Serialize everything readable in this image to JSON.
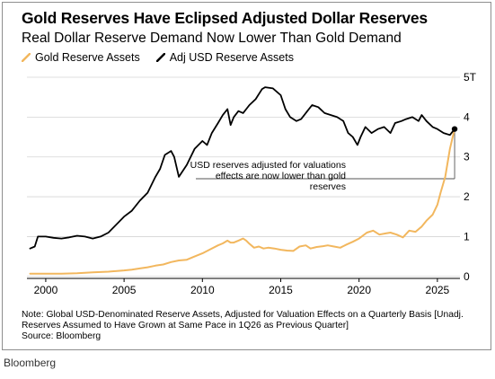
{
  "chart_data": {
    "type": "line",
    "title": "Gold Reserves Have Eclipsed Adjusted Dollar Reserves",
    "subtitle": "Real Dollar Reserve Demand Now Lower Than Gold Demand",
    "y_unit_suffix": "T",
    "xlim": [
      1998.8,
      2026.9
    ],
    "ylim": [
      -0.05,
      5.0
    ],
    "x_ticks": [
      2000,
      2005,
      2010,
      2015,
      2020,
      2025
    ],
    "y_ticks": [
      0,
      1,
      2,
      3,
      4,
      5
    ],
    "grid": true,
    "legend_position": "top-left",
    "series": [
      {
        "name": "Gold Reserve Assets",
        "color": "#f2b75e",
        "points": [
          [
            1999.0,
            0.07
          ],
          [
            2000.0,
            0.07
          ],
          [
            2001.0,
            0.07
          ],
          [
            2002.0,
            0.08
          ],
          [
            2003.0,
            0.1
          ],
          [
            2004.0,
            0.12
          ],
          [
            2005.0,
            0.15
          ],
          [
            2005.5,
            0.17
          ],
          [
            2006.0,
            0.2
          ],
          [
            2006.5,
            0.23
          ],
          [
            2007.0,
            0.27
          ],
          [
            2007.5,
            0.3
          ],
          [
            2008.0,
            0.36
          ],
          [
            2008.5,
            0.4
          ],
          [
            2009.0,
            0.42
          ],
          [
            2009.5,
            0.5
          ],
          [
            2010.0,
            0.58
          ],
          [
            2010.5,
            0.68
          ],
          [
            2011.0,
            0.78
          ],
          [
            2011.3,
            0.83
          ],
          [
            2011.6,
            0.9
          ],
          [
            2011.8,
            0.85
          ],
          [
            2012.0,
            0.85
          ],
          [
            2012.3,
            0.9
          ],
          [
            2012.6,
            0.95
          ],
          [
            2012.8,
            0.9
          ],
          [
            2013.0,
            0.82
          ],
          [
            2013.3,
            0.72
          ],
          [
            2013.6,
            0.75
          ],
          [
            2013.9,
            0.7
          ],
          [
            2014.2,
            0.72
          ],
          [
            2014.6,
            0.7
          ],
          [
            2015.0,
            0.67
          ],
          [
            2015.4,
            0.65
          ],
          [
            2015.8,
            0.64
          ],
          [
            2016.2,
            0.75
          ],
          [
            2016.6,
            0.78
          ],
          [
            2016.9,
            0.7
          ],
          [
            2017.3,
            0.74
          ],
          [
            2017.7,
            0.76
          ],
          [
            2018.0,
            0.78
          ],
          [
            2018.4,
            0.75
          ],
          [
            2018.8,
            0.72
          ],
          [
            2019.2,
            0.8
          ],
          [
            2019.6,
            0.87
          ],
          [
            2020.0,
            0.95
          ],
          [
            2020.5,
            1.1
          ],
          [
            2020.9,
            1.15
          ],
          [
            2021.3,
            1.05
          ],
          [
            2021.7,
            1.08
          ],
          [
            2022.0,
            1.1
          ],
          [
            2022.4,
            1.05
          ],
          [
            2022.8,
            0.98
          ],
          [
            2023.2,
            1.15
          ],
          [
            2023.6,
            1.12
          ],
          [
            2024.0,
            1.25
          ],
          [
            2024.3,
            1.4
          ],
          [
            2024.7,
            1.55
          ],
          [
            2025.0,
            1.8
          ],
          [
            2025.2,
            2.1
          ],
          [
            2025.5,
            2.5
          ],
          [
            2025.8,
            3.2
          ],
          [
            2026.1,
            3.7
          ]
        ]
      },
      {
        "name": "Adj USD Reserve Assets",
        "color": "#000000",
        "points": [
          [
            1999.0,
            0.7
          ],
          [
            1999.3,
            0.75
          ],
          [
            1999.5,
            1.0
          ],
          [
            2000.0,
            1.0
          ],
          [
            2000.5,
            0.97
          ],
          [
            2001.0,
            0.95
          ],
          [
            2001.5,
            0.98
          ],
          [
            2002.0,
            1.02
          ],
          [
            2002.5,
            1.0
          ],
          [
            2003.0,
            0.95
          ],
          [
            2003.5,
            1.0
          ],
          [
            2004.0,
            1.1
          ],
          [
            2004.5,
            1.3
          ],
          [
            2005.0,
            1.5
          ],
          [
            2005.5,
            1.65
          ],
          [
            2006.0,
            1.9
          ],
          [
            2006.5,
            2.1
          ],
          [
            2007.0,
            2.5
          ],
          [
            2007.3,
            2.7
          ],
          [
            2007.6,
            3.05
          ],
          [
            2008.0,
            3.15
          ],
          [
            2008.2,
            3.0
          ],
          [
            2008.5,
            2.5
          ],
          [
            2009.0,
            2.8
          ],
          [
            2009.5,
            3.2
          ],
          [
            2010.0,
            3.4
          ],
          [
            2010.3,
            3.3
          ],
          [
            2010.6,
            3.6
          ],
          [
            2011.0,
            3.85
          ],
          [
            2011.3,
            4.05
          ],
          [
            2011.6,
            4.2
          ],
          [
            2011.8,
            3.8
          ],
          [
            2012.0,
            4.0
          ],
          [
            2012.3,
            4.15
          ],
          [
            2012.6,
            4.1
          ],
          [
            2013.0,
            4.3
          ],
          [
            2013.4,
            4.45
          ],
          [
            2013.8,
            4.7
          ],
          [
            2014.0,
            4.75
          ],
          [
            2014.5,
            4.72
          ],
          [
            2015.0,
            4.55
          ],
          [
            2015.3,
            4.2
          ],
          [
            2015.6,
            4.0
          ],
          [
            2016.0,
            3.9
          ],
          [
            2016.3,
            3.95
          ],
          [
            2016.7,
            4.15
          ],
          [
            2017.0,
            4.3
          ],
          [
            2017.4,
            4.25
          ],
          [
            2017.8,
            4.1
          ],
          [
            2018.2,
            4.05
          ],
          [
            2018.6,
            4.0
          ],
          [
            2019.0,
            3.9
          ],
          [
            2019.3,
            3.6
          ],
          [
            2019.6,
            3.5
          ],
          [
            2019.9,
            3.3
          ],
          [
            2020.1,
            3.5
          ],
          [
            2020.4,
            3.75
          ],
          [
            2020.8,
            3.6
          ],
          [
            2021.2,
            3.7
          ],
          [
            2021.6,
            3.75
          ],
          [
            2022.0,
            3.6
          ],
          [
            2022.3,
            3.85
          ],
          [
            2022.7,
            3.9
          ],
          [
            2023.0,
            3.95
          ],
          [
            2023.4,
            4.0
          ],
          [
            2023.8,
            3.9
          ],
          [
            2024.0,
            4.05
          ],
          [
            2024.3,
            3.9
          ],
          [
            2024.7,
            3.75
          ],
          [
            2025.0,
            3.7
          ],
          [
            2025.4,
            3.6
          ],
          [
            2025.8,
            3.55
          ],
          [
            2026.1,
            3.7
          ]
        ]
      }
    ],
    "annotation": {
      "lines": [
        "USD reserves adjusted for valuations",
        "effects are now lower than gold",
        "reserves"
      ],
      "point": [
        2026.1,
        3.7
      ]
    }
  },
  "note": {
    "lines": [
      "Note: Global USD-Denominated Reserve Assets, Adjusted for Valuation Effects on a Quarterly Basis [Unadj.",
      "Reserves Assumed to Have Grown at Same Pace in 1Q26 as Previous Quarter]",
      "Source: Bloomberg"
    ]
  },
  "brand": "Bloomberg"
}
